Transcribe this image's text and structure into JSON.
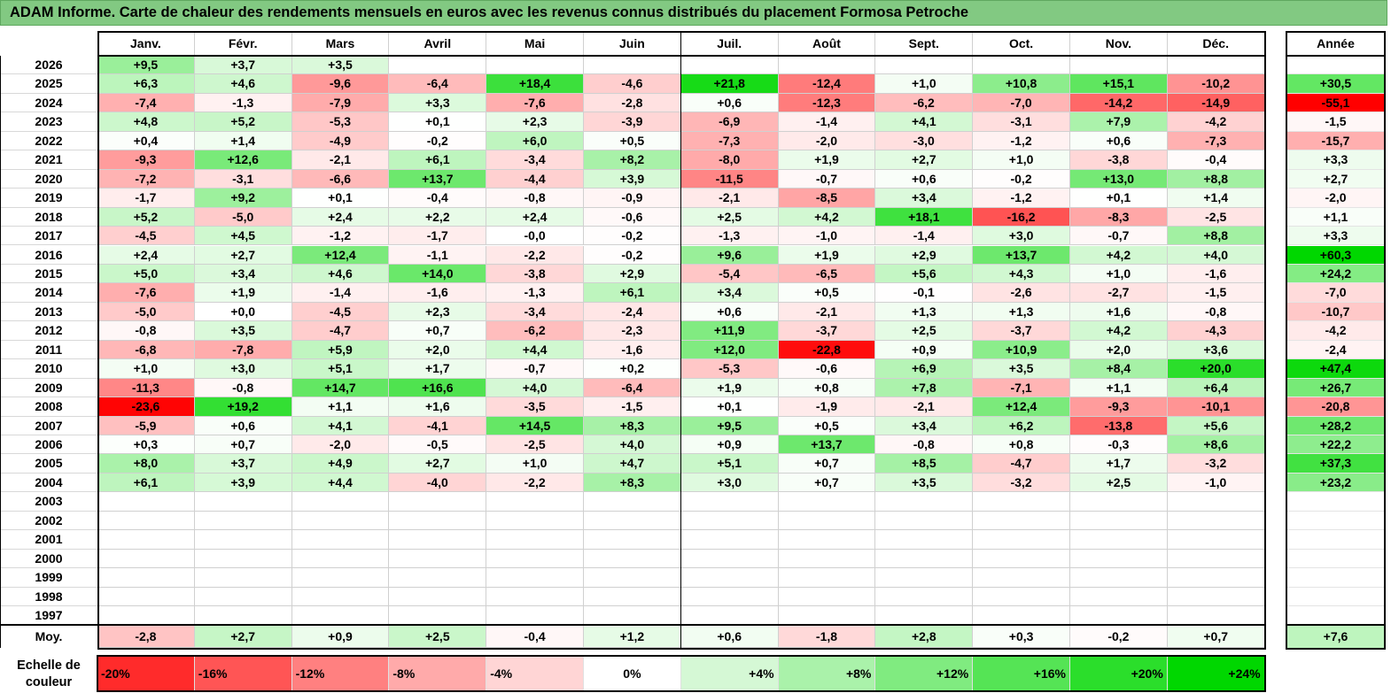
{
  "title": "ADAM Informe. Carte de chaleur des rendements mensuels en euros avec les revenus connus distribués du placement Formosa Petroche",
  "colors": {
    "header_green": "#82c982",
    "negative": "#ff0000",
    "positive": "#00d800"
  },
  "chart_data": {
    "type": "heatmap",
    "months": [
      "Janv.",
      "Févr.",
      "Mars",
      "Avril",
      "Mai",
      "Juin",
      "Juil.",
      "Août",
      "Sept.",
      "Oct.",
      "Nov.",
      "Déc."
    ],
    "year_header": "Année",
    "rows": [
      {
        "year": "2026",
        "values": [
          "+9,5",
          "+3,7",
          "+3,5",
          "",
          "",
          "",
          "",
          "",
          "",
          "",
          "",
          ""
        ],
        "annual": ""
      },
      {
        "year": "2025",
        "values": [
          "+6,3",
          "+4,6",
          "-9,6",
          "-6,4",
          "+18,4",
          "-4,6",
          "+21,8",
          "-12,4",
          "+1,0",
          "+10,8",
          "+15,1",
          "-10,2"
        ],
        "annual": "+30,5"
      },
      {
        "year": "2024",
        "values": [
          "-7,4",
          "-1,3",
          "-7,9",
          "+3,3",
          "-7,6",
          "-2,8",
          "+0,6",
          "-12,3",
          "-6,2",
          "-7,0",
          "-14,2",
          "-14,9"
        ],
        "annual": "-55,1"
      },
      {
        "year": "2023",
        "values": [
          "+4,8",
          "+5,2",
          "-5,3",
          "+0,1",
          "+2,3",
          "-3,9",
          "-6,9",
          "-1,4",
          "+4,1",
          "-3,1",
          "+7,9",
          "-4,2"
        ],
        "annual": "-1,5"
      },
      {
        "year": "2022",
        "values": [
          "+0,4",
          "+1,4",
          "-4,9",
          "-0,2",
          "+6,0",
          "+0,5",
          "-7,3",
          "-2,0",
          "-3,0",
          "-1,2",
          "+0,6",
          "-7,3"
        ],
        "annual": "-15,7"
      },
      {
        "year": "2021",
        "values": [
          "-9,3",
          "+12,6",
          "-2,1",
          "+6,1",
          "-3,4",
          "+8,2",
          "-8,0",
          "+1,9",
          "+2,7",
          "+1,0",
          "-3,8",
          "-0,4"
        ],
        "annual": "+3,3"
      },
      {
        "year": "2020",
        "values": [
          "-7,2",
          "-3,1",
          "-6,6",
          "+13,7",
          "-4,4",
          "+3,9",
          "-11,5",
          "-0,7",
          "+0,6",
          "-0,2",
          "+13,0",
          "+8,8"
        ],
        "annual": "+2,7"
      },
      {
        "year": "2019",
        "values": [
          "-1,7",
          "+9,2",
          "+0,1",
          "-0,4",
          "-0,8",
          "-0,9",
          "-2,1",
          "-8,5",
          "+3,4",
          "-1,2",
          "+0,1",
          "+1,4"
        ],
        "annual": "-2,0"
      },
      {
        "year": "2018",
        "values": [
          "+5,2",
          "-5,0",
          "+2,4",
          "+2,2",
          "+2,4",
          "-0,6",
          "+2,5",
          "+4,2",
          "+18,1",
          "-16,2",
          "-8,3",
          "-2,5"
        ],
        "annual": "+1,1"
      },
      {
        "year": "2017",
        "values": [
          "-4,5",
          "+4,5",
          "-1,2",
          "-1,7",
          "-0,0",
          "-0,2",
          "-1,3",
          "-1,0",
          "-1,4",
          "+3,0",
          "-0,7",
          "+8,8"
        ],
        "annual": "+3,3"
      },
      {
        "year": "2016",
        "values": [
          "+2,4",
          "+2,7",
          "+12,4",
          "-1,1",
          "-2,2",
          "-0,2",
          "+9,6",
          "+1,9",
          "+2,9",
          "+13,7",
          "+4,2",
          "+4,0"
        ],
        "annual": "+60,3"
      },
      {
        "year": "2015",
        "values": [
          "+5,0",
          "+3,4",
          "+4,6",
          "+14,0",
          "-3,8",
          "+2,9",
          "-5,4",
          "-6,5",
          "+5,6",
          "+4,3",
          "+1,0",
          "-1,6"
        ],
        "annual": "+24,2"
      },
      {
        "year": "2014",
        "values": [
          "-7,6",
          "+1,9",
          "-1,4",
          "-1,6",
          "-1,3",
          "+6,1",
          "+3,4",
          "+0,5",
          "-0,1",
          "-2,6",
          "-2,7",
          "-1,5"
        ],
        "annual": "-7,0"
      },
      {
        "year": "2013",
        "values": [
          "-5,0",
          "+0,0",
          "-4,5",
          "+2,3",
          "-3,4",
          "-2,4",
          "+0,6",
          "-2,1",
          "+1,3",
          "+1,3",
          "+1,6",
          "-0,8"
        ],
        "annual": "-10,7"
      },
      {
        "year": "2012",
        "values": [
          "-0,8",
          "+3,5",
          "-4,7",
          "+0,7",
          "-6,2",
          "-2,3",
          "+11,9",
          "-3,7",
          "+2,5",
          "-3,7",
          "+4,2",
          "-4,3"
        ],
        "annual": "-4,2"
      },
      {
        "year": "2011",
        "values": [
          "-6,8",
          "-7,8",
          "+5,9",
          "+2,0",
          "+4,4",
          "-1,6",
          "+12,0",
          "-22,8",
          "+0,9",
          "+10,9",
          "+2,0",
          "+3,6"
        ],
        "annual": "-2,4"
      },
      {
        "year": "2010",
        "values": [
          "+1,0",
          "+3,0",
          "+5,1",
          "+1,7",
          "-0,7",
          "+0,2",
          "-5,3",
          "-0,6",
          "+6,9",
          "+3,5",
          "+8,4",
          "+20,0"
        ],
        "annual": "+47,4"
      },
      {
        "year": "2009",
        "values": [
          "-11,3",
          "-0,8",
          "+14,7",
          "+16,6",
          "+4,0",
          "-6,4",
          "+1,9",
          "+0,8",
          "+7,8",
          "-7,1",
          "+1,1",
          "+6,4"
        ],
        "annual": "+26,7"
      },
      {
        "year": "2008",
        "values": [
          "-23,6",
          "+19,2",
          "+1,1",
          "+1,6",
          "-3,5",
          "-1,5",
          "+0,1",
          "-1,9",
          "-2,1",
          "+12,4",
          "-9,3",
          "-10,1"
        ],
        "annual": "-20,8"
      },
      {
        "year": "2007",
        "values": [
          "-5,9",
          "+0,6",
          "+4,1",
          "-4,1",
          "+14,5",
          "+8,3",
          "+9,5",
          "+0,5",
          "+3,4",
          "+6,2",
          "-13,8",
          "+5,6"
        ],
        "annual": "+28,2"
      },
      {
        "year": "2006",
        "values": [
          "+0,3",
          "+0,7",
          "-2,0",
          "-0,5",
          "-2,5",
          "+4,0",
          "+0,9",
          "+13,7",
          "-0,8",
          "+0,8",
          "-0,3",
          "+8,6"
        ],
        "annual": "+22,2"
      },
      {
        "year": "2005",
        "values": [
          "+8,0",
          "+3,7",
          "+4,9",
          "+2,7",
          "+1,0",
          "+4,7",
          "+5,1",
          "+0,7",
          "+8,5",
          "-4,7",
          "+1,7",
          "-3,2"
        ],
        "annual": "+37,3"
      },
      {
        "year": "2004",
        "values": [
          "+6,1",
          "+3,9",
          "+4,4",
          "-4,0",
          "-2,2",
          "+8,3",
          "+3,0",
          "+0,7",
          "+3,5",
          "-3,2",
          "+2,5",
          "-1,0"
        ],
        "annual": "+23,2"
      },
      {
        "year": "2003",
        "values": [
          "",
          "",
          "",
          "",
          "",
          "",
          "",
          "",
          "",
          "",
          "",
          ""
        ],
        "annual": ""
      },
      {
        "year": "2002",
        "values": [
          "",
          "",
          "",
          "",
          "",
          "",
          "",
          "",
          "",
          "",
          "",
          ""
        ],
        "annual": ""
      },
      {
        "year": "2001",
        "values": [
          "",
          "",
          "",
          "",
          "",
          "",
          "",
          "",
          "",
          "",
          "",
          ""
        ],
        "annual": ""
      },
      {
        "year": "2000",
        "values": [
          "",
          "",
          "",
          "",
          "",
          "",
          "",
          "",
          "",
          "",
          "",
          ""
        ],
        "annual": ""
      },
      {
        "year": "1999",
        "values": [
          "",
          "",
          "",
          "",
          "",
          "",
          "",
          "",
          "",
          "",
          "",
          ""
        ],
        "annual": ""
      },
      {
        "year": "1998",
        "values": [
          "",
          "",
          "",
          "",
          "",
          "",
          "",
          "",
          "",
          "",
          "",
          ""
        ],
        "annual": ""
      },
      {
        "year": "1997",
        "values": [
          "",
          "",
          "",
          "",
          "",
          "",
          "",
          "",
          "",
          "",
          "",
          ""
        ],
        "annual": ""
      }
    ],
    "average": {
      "label": "Moy.",
      "values": [
        "-2,8",
        "+2,7",
        "+0,9",
        "+2,5",
        "-0,4",
        "+1,2",
        "+0,6",
        "-1,8",
        "+2,8",
        "+0,3",
        "-0,2",
        "+0,7"
      ],
      "annual": "+7,6"
    },
    "scale": {
      "label": "Echelle de couleur",
      "steps": [
        "-20%",
        "-16%",
        "-12%",
        "-8%",
        "-4%",
        "0%",
        "+4%",
        "+8%",
        "+12%",
        "+16%",
        "+20%",
        "+24%"
      ]
    }
  }
}
